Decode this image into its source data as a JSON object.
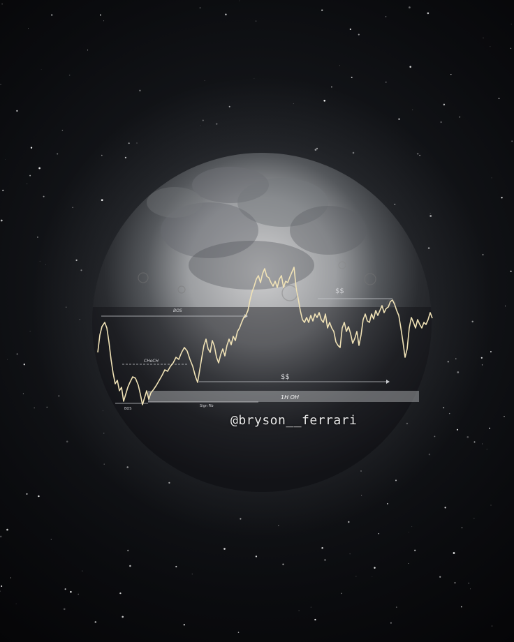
{
  "image": {
    "subject": "moon",
    "watermark": "@bryson__ferrari"
  },
  "chart_data": {
    "type": "line",
    "annotations": {
      "bos_top": "BOS",
      "choch": "CHoCH",
      "bos_bottom": "BOS",
      "ss_upper": "$$",
      "ss_lower": "$$",
      "oh_1h": "1H OH",
      "sign_fib": "Sign Fib"
    },
    "colors": {
      "line": "#f0e2b6",
      "moon_highlight": "#d9d9d9",
      "moon_shadow": "#1c1e22",
      "zone": "#bfc1c4"
    }
  }
}
